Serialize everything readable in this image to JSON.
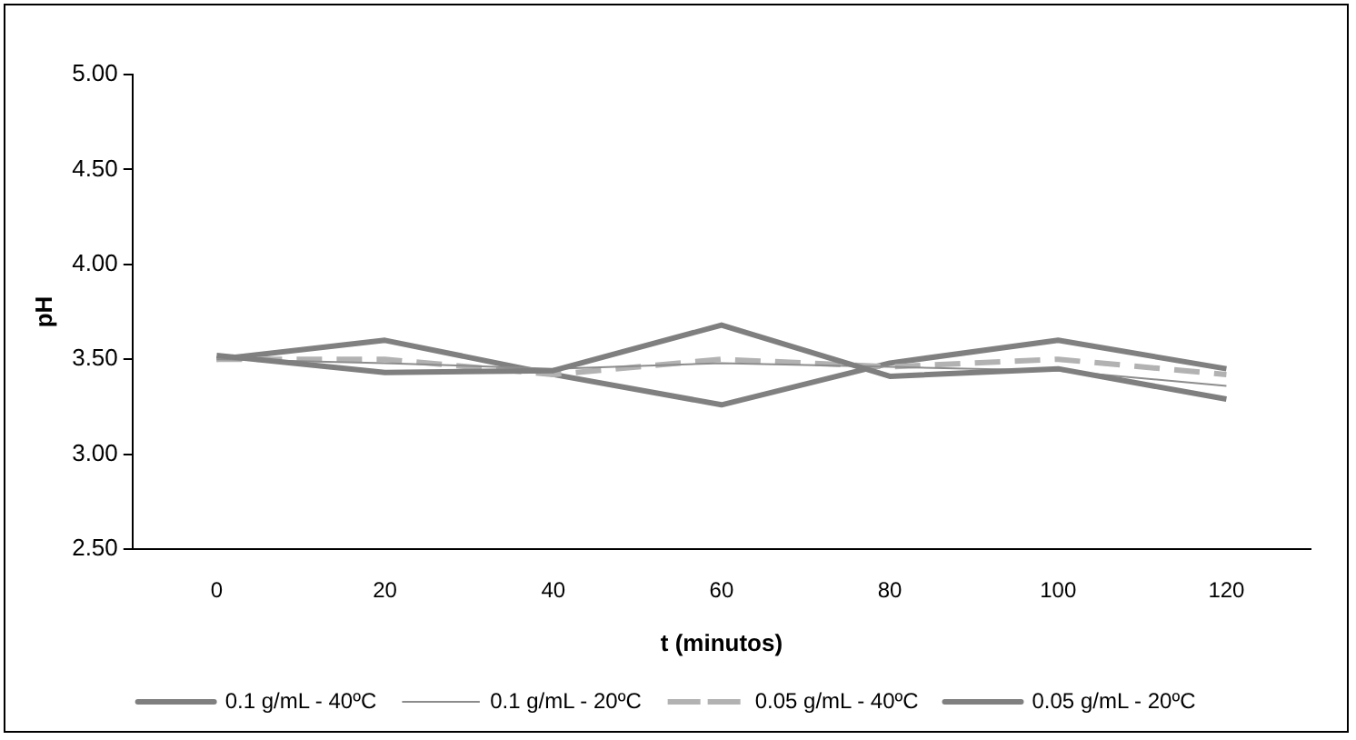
{
  "chart_data": {
    "type": "line",
    "xlabel": "t (minutos)",
    "ylabel": "pH",
    "categories": [
      "0",
      "20",
      "40",
      "60",
      "80",
      "100",
      "120"
    ],
    "ylim": [
      2.5,
      5
    ],
    "yticks": [
      {
        "value": 2.5,
        "label": "2.50"
      },
      {
        "value": 3,
        "label": "3.00"
      },
      {
        "value": 3.5,
        "label": "3.50"
      },
      {
        "value": 4,
        "label": "4.00"
      },
      {
        "value": 4.5,
        "label": "4.50"
      },
      {
        "value": 5,
        "label": "5.00"
      }
    ],
    "grid": false,
    "legend": "bottom",
    "marker": "none",
    "series": [
      {
        "name": "0.1 g/mL - 40ºC",
        "color": "#7f7f7f",
        "values": [
          3.52,
          3.43,
          3.44,
          3.68,
          3.41,
          3.45,
          3.29
        ]
      },
      {
        "name": "0.1 g/mL - 20ºC",
        "color": "#8c8c8c",
        "line_style": "solid",
        "values": [
          3.5,
          3.48,
          3.45,
          3.48,
          3.46,
          3.44,
          3.36
        ]
      },
      {
        "name": "0.05 g/mL - 40ºC",
        "color": "#b2b2b2",
        "line_style": "dashed",
        "values": [
          3.5,
          3.5,
          3.42,
          3.5,
          3.46,
          3.5,
          3.42
        ]
      },
      {
        "name": "0.05 g/mL - 20ºC",
        "color": "#808080",
        "values": [
          3.5,
          3.6,
          3.42,
          3.26,
          3.48,
          3.6,
          3.45
        ]
      }
    ]
  }
}
